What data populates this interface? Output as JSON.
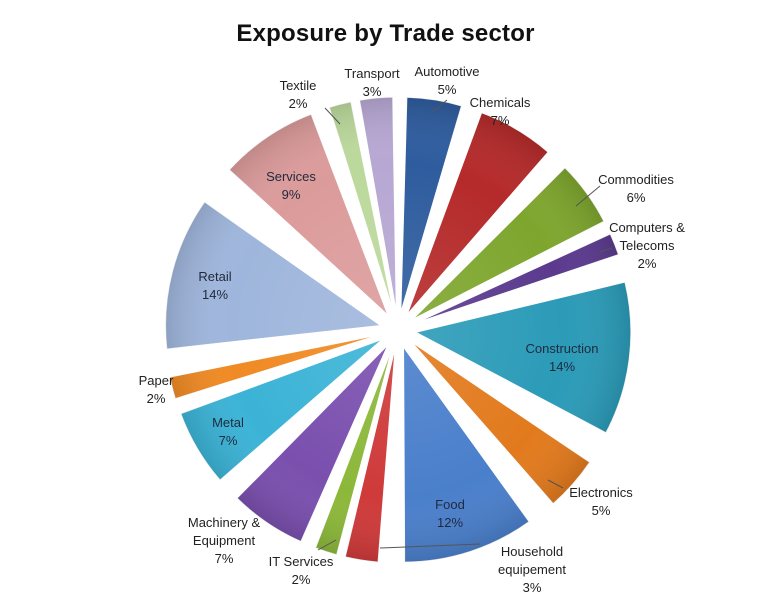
{
  "chart_data": {
    "type": "pie",
    "title": "Exposure by Trade sector",
    "slices": [
      {
        "label": "Automotive",
        "value": 5,
        "display": "5%",
        "color": "#2e5c9e"
      },
      {
        "label": "Chemicals",
        "value": 7,
        "display": "7%",
        "color": "#b52a2a"
      },
      {
        "label": "Commodities",
        "value": 6,
        "display": "6%",
        "color": "#7ea62e"
      },
      {
        "label": "Computers & Telecoms",
        "value": 2,
        "display": "2%",
        "color": "#5b3a8e"
      },
      {
        "label": "Construction",
        "value": 14,
        "display": "14%",
        "color": "#2b9bb8"
      },
      {
        "label": "Electronics",
        "value": 5,
        "display": "5%",
        "color": "#e27a1d"
      },
      {
        "label": "Food",
        "value": 12,
        "display": "12%",
        "color": "#4a7fcb"
      },
      {
        "label": "Household equipement",
        "value": 3,
        "display": "3%",
        "color": "#cf3a3a"
      },
      {
        "label": "IT Services",
        "value": 2,
        "display": "2%",
        "color": "#8cb83a"
      },
      {
        "label": "Machinery & Equipment",
        "value": 7,
        "display": "7%",
        "color": "#7a4fae"
      },
      {
        "label": "Metal",
        "value": 7,
        "display": "7%",
        "color": "#3bb3d6"
      },
      {
        "label": "Paper",
        "value": 2,
        "display": "2%",
        "color": "#f08a24"
      },
      {
        "label": "Retail",
        "value": 14,
        "display": "14%",
        "color": "#9fb6dc"
      },
      {
        "label": "Services",
        "value": 9,
        "display": "9%",
        "color": "#dc9b9b"
      },
      {
        "label": "Textile",
        "value": 2,
        "display": "2%",
        "color": "#bcd99c"
      },
      {
        "label": "Transport",
        "value": 3,
        "display": "3%",
        "color": "#b7a7d3"
      }
    ],
    "legend": "none",
    "labels": "category name and percentage on each slice",
    "exploded": true
  }
}
